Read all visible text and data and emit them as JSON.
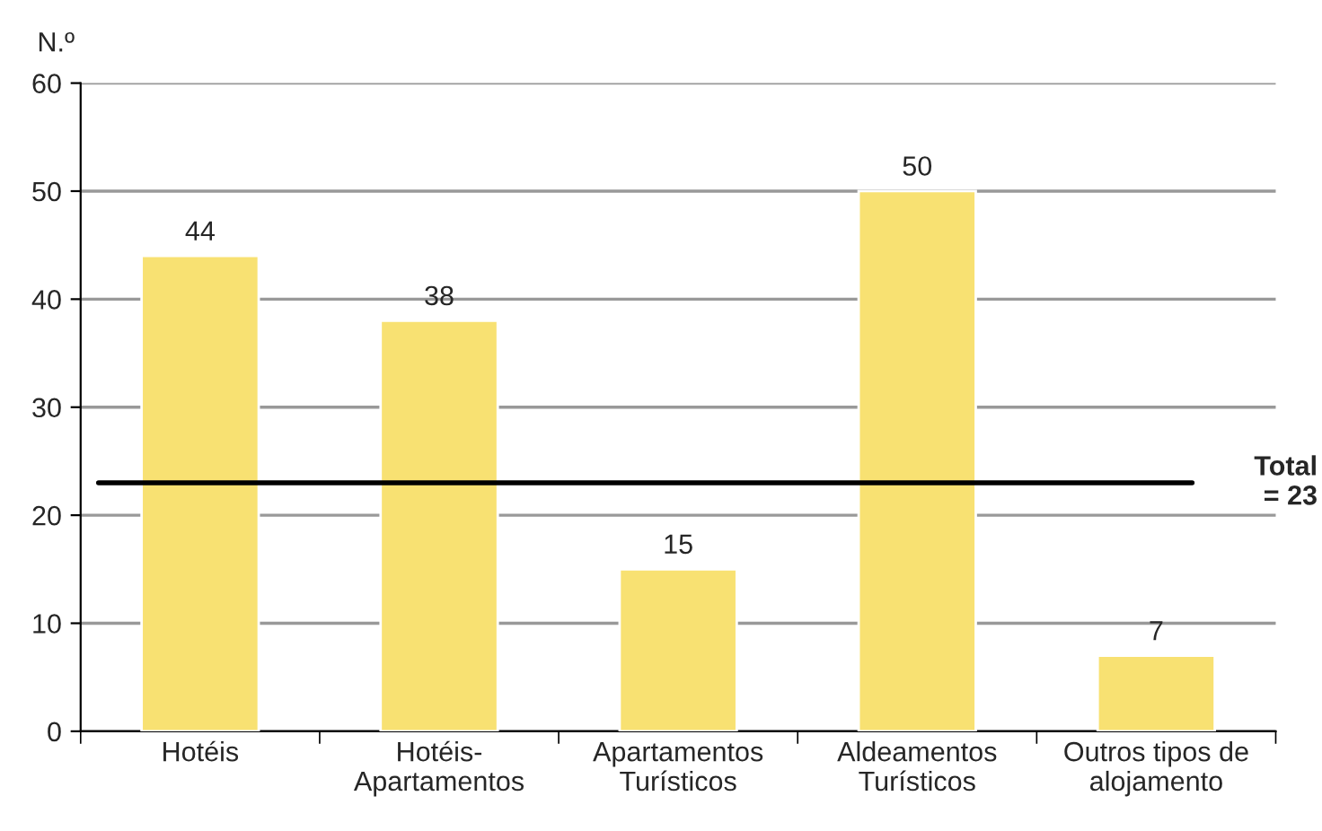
{
  "chart_data": {
    "type": "bar",
    "ylabel": "N.º",
    "categories": [
      "Hotéis",
      "Hotéis-\nApartamentos",
      "Apartamentos\nTurísticos",
      "Aldeamentos\nTurísticos",
      "Outros tipos de\nalojamento"
    ],
    "values": [
      44,
      38,
      15,
      50,
      7
    ],
    "color": "#f8e172",
    "ylim": [
      0,
      60
    ],
    "yticks": [
      0,
      10,
      20,
      30,
      40,
      50,
      60
    ],
    "grid": "y",
    "data_labels": true,
    "ref_lines": [
      {
        "axis": "y",
        "value": 23,
        "label": "Total\n= 23",
        "color": "#000000",
        "line_style": "solid"
      }
    ]
  }
}
